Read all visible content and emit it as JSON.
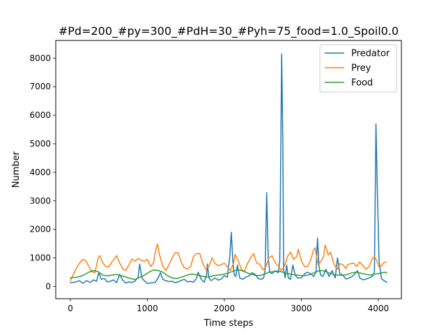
{
  "chart_data": {
    "type": "line",
    "title": "#Pd=200_#py=300_#PdH=30_#Pyh=75_food=1.0_Spoil0.0",
    "xlabel": "Time steps",
    "ylabel": "Number",
    "xlim": [
      -190,
      4300
    ],
    "ylim": [
      -430,
      8620
    ],
    "xticks": [
      0,
      1000,
      2000,
      3000,
      4000
    ],
    "yticks": [
      0,
      1000,
      2000,
      3000,
      4000,
      5000,
      6000,
      7000,
      8000
    ],
    "grid": false,
    "legend_position": "top-right",
    "series": [
      {
        "name": "Predator",
        "color": "#1f77b4",
        "points": [
          [
            0,
            130
          ],
          [
            60,
            150
          ],
          [
            120,
            200
          ],
          [
            160,
            110
          ],
          [
            210,
            200
          ],
          [
            260,
            140
          ],
          [
            300,
            230
          ],
          [
            340,
            180
          ],
          [
            370,
            500
          ],
          [
            400,
            250
          ],
          [
            440,
            280
          ],
          [
            480,
            160
          ],
          [
            520,
            180
          ],
          [
            560,
            230
          ],
          [
            600,
            130
          ],
          [
            640,
            420
          ],
          [
            680,
            220
          ],
          [
            720,
            120
          ],
          [
            760,
            160
          ],
          [
            800,
            140
          ],
          [
            840,
            190
          ],
          [
            880,
            320
          ],
          [
            900,
            780
          ],
          [
            930,
            300
          ],
          [
            960,
            200
          ],
          [
            1000,
            100
          ],
          [
            1050,
            130
          ],
          [
            1100,
            140
          ],
          [
            1140,
            300
          ],
          [
            1170,
            480
          ],
          [
            1200,
            250
          ],
          [
            1240,
            200
          ],
          [
            1280,
            170
          ],
          [
            1320,
            180
          ],
          [
            1360,
            130
          ],
          [
            1400,
            160
          ],
          [
            1440,
            210
          ],
          [
            1480,
            250
          ],
          [
            1520,
            160
          ],
          [
            1560,
            180
          ],
          [
            1600,
            150
          ],
          [
            1640,
            300
          ],
          [
            1660,
            500
          ],
          [
            1700,
            240
          ],
          [
            1740,
            150
          ],
          [
            1770,
            420
          ],
          [
            1780,
            790
          ],
          [
            1800,
            300
          ],
          [
            1830,
            200
          ],
          [
            1880,
            300
          ],
          [
            1920,
            220
          ],
          [
            1960,
            260
          ],
          [
            2000,
            380
          ],
          [
            2040,
            320
          ],
          [
            2070,
            1050
          ],
          [
            2090,
            1900
          ],
          [
            2110,
            900
          ],
          [
            2130,
            400
          ],
          [
            2150,
            350
          ],
          [
            2170,
            750
          ],
          [
            2200,
            300
          ],
          [
            2240,
            250
          ],
          [
            2280,
            330
          ],
          [
            2320,
            370
          ],
          [
            2360,
            480
          ],
          [
            2400,
            420
          ],
          [
            2440,
            280
          ],
          [
            2480,
            250
          ],
          [
            2510,
            300
          ],
          [
            2530,
            600
          ],
          [
            2550,
            3280
          ],
          [
            2570,
            1000
          ],
          [
            2590,
            500
          ],
          [
            2620,
            450
          ],
          [
            2660,
            550
          ],
          [
            2700,
            480
          ],
          [
            2720,
            900
          ],
          [
            2745,
            8150
          ],
          [
            2760,
            5000
          ],
          [
            2770,
            600
          ],
          [
            2790,
            300
          ],
          [
            2810,
            750
          ],
          [
            2830,
            300
          ],
          [
            2860,
            250
          ],
          [
            2890,
            750
          ],
          [
            2920,
            400
          ],
          [
            2950,
            300
          ],
          [
            3000,
            300
          ],
          [
            3040,
            430
          ],
          [
            3080,
            500
          ],
          [
            3120,
            450
          ],
          [
            3160,
            350
          ],
          [
            3190,
            500
          ],
          [
            3210,
            1700
          ],
          [
            3230,
            700
          ],
          [
            3250,
            400
          ],
          [
            3280,
            350
          ],
          [
            3320,
            600
          ],
          [
            3360,
            350
          ],
          [
            3400,
            550
          ],
          [
            3440,
            300
          ],
          [
            3470,
            1000
          ],
          [
            3500,
            450
          ],
          [
            3540,
            400
          ],
          [
            3580,
            260
          ],
          [
            3620,
            300
          ],
          [
            3660,
            350
          ],
          [
            3700,
            450
          ],
          [
            3730,
            550
          ],
          [
            3760,
            300
          ],
          [
            3800,
            230
          ],
          [
            3840,
            260
          ],
          [
            3880,
            300
          ],
          [
            3920,
            350
          ],
          [
            3950,
            500
          ],
          [
            3970,
            5700
          ],
          [
            3990,
            3000
          ],
          [
            4010,
            900
          ],
          [
            4040,
            280
          ],
          [
            4080,
            190
          ],
          [
            4110,
            150
          ]
        ]
      },
      {
        "name": "Prey",
        "color": "#ff7f0e",
        "points": [
          [
            0,
            200
          ],
          [
            40,
            420
          ],
          [
            80,
            650
          ],
          [
            120,
            820
          ],
          [
            160,
            950
          ],
          [
            200,
            900
          ],
          [
            240,
            700
          ],
          [
            280,
            520
          ],
          [
            320,
            480
          ],
          [
            360,
            1000
          ],
          [
            380,
            1080
          ],
          [
            420,
            830
          ],
          [
            460,
            700
          ],
          [
            500,
            690
          ],
          [
            540,
            860
          ],
          [
            580,
            1000
          ],
          [
            600,
            1080
          ],
          [
            640,
            820
          ],
          [
            680,
            620
          ],
          [
            720,
            560
          ],
          [
            760,
            750
          ],
          [
            800,
            960
          ],
          [
            840,
            880
          ],
          [
            880,
            980
          ],
          [
            920,
            920
          ],
          [
            960,
            880
          ],
          [
            1000,
            950
          ],
          [
            1040,
            700
          ],
          [
            1080,
            820
          ],
          [
            1110,
            1300
          ],
          [
            1130,
            1480
          ],
          [
            1160,
            1100
          ],
          [
            1200,
            700
          ],
          [
            1240,
            560
          ],
          [
            1280,
            760
          ],
          [
            1320,
            980
          ],
          [
            1360,
            1180
          ],
          [
            1400,
            1180
          ],
          [
            1440,
            850
          ],
          [
            1480,
            650
          ],
          [
            1520,
            620
          ],
          [
            1560,
            680
          ],
          [
            1600,
            1050
          ],
          [
            1640,
            1150
          ],
          [
            1680,
            1150
          ],
          [
            1720,
            800
          ],
          [
            1760,
            600
          ],
          [
            1800,
            700
          ],
          [
            1840,
            1000
          ],
          [
            1880,
            800
          ],
          [
            1920,
            730
          ],
          [
            1960,
            760
          ],
          [
            2000,
            820
          ],
          [
            2040,
            680
          ],
          [
            2080,
            560
          ],
          [
            2120,
            820
          ],
          [
            2140,
            1120
          ],
          [
            2180,
            900
          ],
          [
            2220,
            610
          ],
          [
            2260,
            520
          ],
          [
            2300,
            800
          ],
          [
            2340,
            1000
          ],
          [
            2380,
            1150
          ],
          [
            2420,
            820
          ],
          [
            2460,
            780
          ],
          [
            2500,
            580
          ],
          [
            2540,
            700
          ],
          [
            2580,
            1000
          ],
          [
            2620,
            1080
          ],
          [
            2660,
            830
          ],
          [
            2700,
            720
          ],
          [
            2740,
            560
          ],
          [
            2780,
            700
          ],
          [
            2820,
            1050
          ],
          [
            2860,
            1200
          ],
          [
            2900,
            950
          ],
          [
            2940,
            1050
          ],
          [
            2960,
            1300
          ],
          [
            3000,
            900
          ],
          [
            3040,
            700
          ],
          [
            3080,
            700
          ],
          [
            3120,
            900
          ],
          [
            3160,
            1300
          ],
          [
            3180,
            1350
          ],
          [
            3200,
            1000
          ],
          [
            3220,
            760
          ],
          [
            3260,
            900
          ],
          [
            3290,
            1060
          ],
          [
            3310,
            1450
          ],
          [
            3330,
            1300
          ],
          [
            3350,
            1100
          ],
          [
            3380,
            1200
          ],
          [
            3410,
            900
          ],
          [
            3440,
            700
          ],
          [
            3470,
            600
          ],
          [
            3500,
            800
          ],
          [
            3540,
            760
          ],
          [
            3580,
            620
          ],
          [
            3600,
            760
          ],
          [
            3640,
            800
          ],
          [
            3680,
            820
          ],
          [
            3720,
            700
          ],
          [
            3760,
            860
          ],
          [
            3800,
            720
          ],
          [
            3840,
            600
          ],
          [
            3880,
            700
          ],
          [
            3920,
            970
          ],
          [
            3950,
            1050
          ],
          [
            3980,
            900
          ],
          [
            4010,
            680
          ],
          [
            4040,
            720
          ],
          [
            4070,
            830
          ],
          [
            4100,
            860
          ]
        ]
      },
      {
        "name": "Food",
        "color": "#2ca02c",
        "points": [
          [
            0,
            300
          ],
          [
            80,
            320
          ],
          [
            160,
            380
          ],
          [
            240,
            500
          ],
          [
            300,
            560
          ],
          [
            360,
            520
          ],
          [
            420,
            400
          ],
          [
            480,
            370
          ],
          [
            540,
            400
          ],
          [
            600,
            420
          ],
          [
            660,
            380
          ],
          [
            720,
            330
          ],
          [
            780,
            280
          ],
          [
            840,
            240
          ],
          [
            900,
            320
          ],
          [
            960,
            390
          ],
          [
            1020,
            500
          ],
          [
            1080,
            580
          ],
          [
            1140,
            560
          ],
          [
            1200,
            500
          ],
          [
            1260,
            380
          ],
          [
            1320,
            300
          ],
          [
            1380,
            280
          ],
          [
            1440,
            320
          ],
          [
            1500,
            380
          ],
          [
            1560,
            430
          ],
          [
            1620,
            420
          ],
          [
            1680,
            380
          ],
          [
            1740,
            340
          ],
          [
            1800,
            330
          ],
          [
            1860,
            380
          ],
          [
            1920,
            400
          ],
          [
            1980,
            420
          ],
          [
            2040,
            460
          ],
          [
            2100,
            520
          ],
          [
            2160,
            580
          ],
          [
            2220,
            560
          ],
          [
            2280,
            500
          ],
          [
            2340,
            430
          ],
          [
            2400,
            390
          ],
          [
            2460,
            380
          ],
          [
            2520,
            430
          ],
          [
            2580,
            500
          ],
          [
            2640,
            520
          ],
          [
            2700,
            540
          ],
          [
            2760,
            500
          ],
          [
            2820,
            450
          ],
          [
            2880,
            420
          ],
          [
            2940,
            400
          ],
          [
            3000,
            380
          ],
          [
            3060,
            380
          ],
          [
            3120,
            420
          ],
          [
            3180,
            500
          ],
          [
            3240,
            560
          ],
          [
            3300,
            540
          ],
          [
            3360,
            470
          ],
          [
            3420,
            420
          ],
          [
            3480,
            400
          ],
          [
            3540,
            390
          ],
          [
            3600,
            420
          ],
          [
            3660,
            480
          ],
          [
            3720,
            500
          ],
          [
            3780,
            460
          ],
          [
            3840,
            420
          ],
          [
            3900,
            400
          ],
          [
            3960,
            430
          ],
          [
            4020,
            460
          ],
          [
            4080,
            500
          ],
          [
            4110,
            480
          ]
        ]
      }
    ]
  }
}
